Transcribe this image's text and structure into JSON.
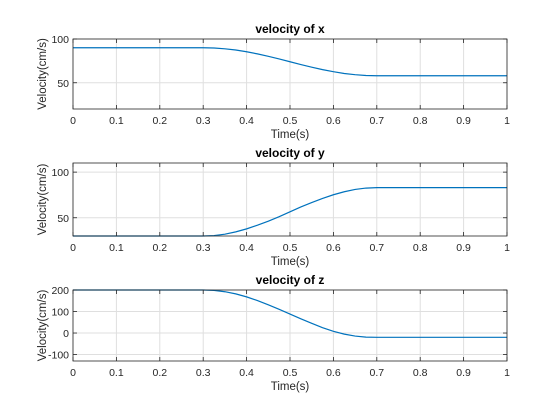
{
  "colors": {
    "series": "#0072bd"
  },
  "chart_data": [
    {
      "type": "line",
      "title": "velocity of x",
      "xlabel": "Time(s)",
      "ylabel": "Velocity(cm/s)",
      "xlim": [
        0,
        1
      ],
      "ylim": [
        20,
        100
      ],
      "xticks": [
        0,
        0.1,
        0.2,
        0.3,
        0.4,
        0.5,
        0.6,
        0.7,
        0.8,
        0.9,
        1
      ],
      "xtick_labels": [
        "0",
        "0.1",
        "0.2",
        "0.3",
        "0.4",
        "0.5",
        "0.6",
        "0.7",
        "0.8",
        "0.9",
        "1"
      ],
      "yticks": [
        50,
        100
      ],
      "ytick_labels": [
        "50",
        "100"
      ],
      "grid": true,
      "series": [
        {
          "x": [
            0,
            0.3,
            0.325,
            0.35,
            0.375,
            0.4,
            0.425,
            0.45,
            0.475,
            0.5,
            0.525,
            0.55,
            0.575,
            0.6,
            0.625,
            0.65,
            0.675,
            0.7,
            1
          ],
          "y": [
            90,
            90,
            89.7,
            88.8,
            87.4,
            85.4,
            83.0,
            80.2,
            77.2,
            74.0,
            70.8,
            67.8,
            65.0,
            62.6,
            60.6,
            59.2,
            58.3,
            58.0,
            58.0
          ]
        }
      ]
    },
    {
      "type": "line",
      "title": "velocity of y",
      "xlabel": "Time(s)",
      "ylabel": "Velocity(cm/s)",
      "xlim": [
        0,
        1
      ],
      "ylim": [
        30,
        110
      ],
      "xticks": [
        0,
        0.1,
        0.2,
        0.3,
        0.4,
        0.5,
        0.6,
        0.7,
        0.8,
        0.9,
        1
      ],
      "xtick_labels": [
        "0",
        "0.1",
        "0.2",
        "0.3",
        "0.4",
        "0.5",
        "0.6",
        "0.7",
        "0.8",
        "0.9",
        "1"
      ],
      "yticks": [
        50,
        100
      ],
      "ytick_labels": [
        "50",
        "100"
      ],
      "grid": true,
      "series": [
        {
          "x": [
            0,
            0.3,
            0.325,
            0.35,
            0.375,
            0.4,
            0.425,
            0.45,
            0.475,
            0.5,
            0.525,
            0.55,
            0.575,
            0.6,
            0.625,
            0.65,
            0.675,
            0.7,
            1
          ],
          "y": [
            30,
            30,
            30.5,
            32.0,
            34.5,
            37.8,
            41.8,
            46.3,
            51.2,
            56.5,
            61.8,
            66.7,
            71.2,
            75.2,
            78.5,
            81.0,
            82.5,
            83.0,
            83.0
          ]
        }
      ]
    },
    {
      "type": "line",
      "title": "velocity of z",
      "xlabel": "Time(s)",
      "ylabel": "Velocity(cm/s)",
      "xlim": [
        0,
        1
      ],
      "ylim": [
        -130,
        200
      ],
      "xticks": [
        0,
        0.1,
        0.2,
        0.3,
        0.4,
        0.5,
        0.6,
        0.7,
        0.8,
        0.9,
        1
      ],
      "xtick_labels": [
        "0",
        "0.1",
        "0.2",
        "0.3",
        "0.4",
        "0.5",
        "0.6",
        "0.7",
        "0.8",
        "0.9",
        "1"
      ],
      "yticks": [
        -100,
        0,
        100,
        200
      ],
      "ytick_labels": [
        "-100",
        "0",
        "100",
        "200"
      ],
      "grid": true,
      "series": [
        {
          "x": [
            0,
            0.3,
            0.325,
            0.35,
            0.375,
            0.4,
            0.425,
            0.45,
            0.475,
            0.5,
            0.525,
            0.55,
            0.575,
            0.6,
            0.625,
            0.65,
            0.675,
            0.7,
            1
          ],
          "y": [
            200,
            200,
            198,
            192,
            182,
            168,
            151,
            131,
            110,
            88,
            66,
            45,
            25,
            8,
            -5,
            -14,
            -19,
            -20,
            -20
          ]
        }
      ]
    }
  ]
}
